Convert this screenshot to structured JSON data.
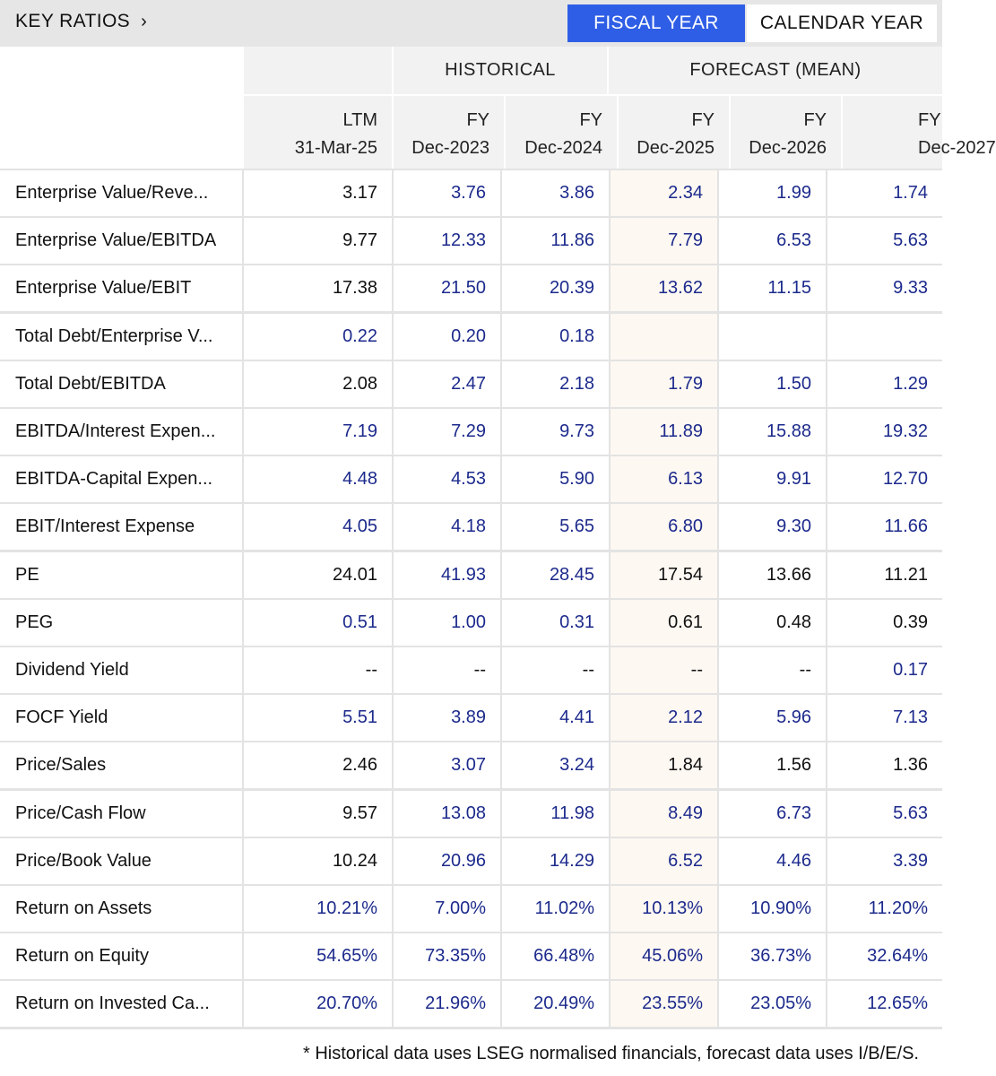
{
  "header": {
    "title": "KEY RATIOS",
    "title_chevron": "›",
    "toggle": {
      "fiscal": "FISCAL YEAR",
      "calendar": "CALENDAR YEAR",
      "active": "fiscal"
    },
    "accent_color": "#2f5ee6"
  },
  "groups": {
    "historical": "HISTORICAL",
    "forecast": "FORECAST (MEAN)"
  },
  "columns": [
    {
      "line1": "LTM",
      "line2": "31-Mar-25"
    },
    {
      "line1": "FY",
      "line2": "Dec-2023"
    },
    {
      "line1": "FY",
      "line2": "Dec-2024"
    },
    {
      "line1": "FY",
      "line2": "Dec-2025"
    },
    {
      "line1": "FY",
      "line2": "Dec-2026"
    },
    {
      "line1": "FY",
      "line2": "Dec-2027"
    }
  ],
  "rows": [
    {
      "label": "Enterprise Value/Reve...",
      "values": [
        "3.17",
        "3.76",
        "3.86",
        "2.34",
        "1.99",
        "1.74"
      ],
      "links": [
        false,
        true,
        true,
        true,
        true,
        true
      ]
    },
    {
      "label": "Enterprise Value/EBITDA",
      "values": [
        "9.77",
        "12.33",
        "11.86",
        "7.79",
        "6.53",
        "5.63"
      ],
      "links": [
        false,
        true,
        true,
        true,
        true,
        true
      ]
    },
    {
      "label": "Enterprise Value/EBIT",
      "values": [
        "17.38",
        "21.50",
        "20.39",
        "13.62",
        "11.15",
        "9.33"
      ],
      "links": [
        false,
        true,
        true,
        true,
        true,
        true
      ]
    },
    {
      "label": "Total Debt/Enterprise V...",
      "values": [
        "0.22",
        "0.20",
        "0.18",
        "",
        "",
        ""
      ],
      "links": [
        true,
        true,
        true,
        false,
        false,
        false
      ]
    },
    {
      "label": "Total Debt/EBITDA",
      "values": [
        "2.08",
        "2.47",
        "2.18",
        "1.79",
        "1.50",
        "1.29"
      ],
      "links": [
        false,
        true,
        true,
        true,
        true,
        true
      ]
    },
    {
      "label": "EBITDA/Interest Expen...",
      "values": [
        "7.19",
        "7.29",
        "9.73",
        "11.89",
        "15.88",
        "19.32"
      ],
      "links": [
        true,
        true,
        true,
        true,
        true,
        true
      ]
    },
    {
      "label": "EBITDA-Capital Expen...",
      "values": [
        "4.48",
        "4.53",
        "5.90",
        "6.13",
        "9.91",
        "12.70"
      ],
      "links": [
        true,
        true,
        true,
        true,
        true,
        true
      ]
    },
    {
      "label": "EBIT/Interest Expense",
      "values": [
        "4.05",
        "4.18",
        "5.65",
        "6.80",
        "9.30",
        "11.66"
      ],
      "links": [
        true,
        true,
        true,
        true,
        true,
        true
      ]
    },
    {
      "label": "PE",
      "values": [
        "24.01",
        "41.93",
        "28.45",
        "17.54",
        "13.66",
        "11.21"
      ],
      "links": [
        false,
        true,
        true,
        false,
        false,
        false
      ]
    },
    {
      "label": "PEG",
      "values": [
        "0.51",
        "1.00",
        "0.31",
        "0.61",
        "0.48",
        "0.39"
      ],
      "links": [
        true,
        true,
        true,
        false,
        false,
        false
      ]
    },
    {
      "label": "Dividend Yield",
      "values": [
        "--",
        "--",
        "--",
        "--",
        "--",
        "0.17"
      ],
      "links": [
        false,
        false,
        false,
        false,
        false,
        true
      ]
    },
    {
      "label": "FOCF Yield",
      "values": [
        "5.51",
        "3.89",
        "4.41",
        "2.12",
        "5.96",
        "7.13"
      ],
      "links": [
        true,
        true,
        true,
        true,
        true,
        true
      ]
    },
    {
      "label": "Price/Sales",
      "values": [
        "2.46",
        "3.07",
        "3.24",
        "1.84",
        "1.56",
        "1.36"
      ],
      "links": [
        false,
        true,
        true,
        false,
        false,
        false
      ]
    },
    {
      "label": "Price/Cash Flow",
      "values": [
        "9.57",
        "13.08",
        "11.98",
        "8.49",
        "6.73",
        "5.63"
      ],
      "links": [
        false,
        true,
        true,
        true,
        true,
        true
      ]
    },
    {
      "label": "Price/Book Value",
      "values": [
        "10.24",
        "20.96",
        "14.29",
        "6.52",
        "4.46",
        "3.39"
      ],
      "links": [
        false,
        true,
        true,
        true,
        true,
        true
      ]
    },
    {
      "label": "Return on Assets",
      "values": [
        "10.21%",
        "7.00%",
        "11.02%",
        "10.13%",
        "10.90%",
        "11.20%"
      ],
      "links": [
        true,
        true,
        true,
        true,
        true,
        true
      ]
    },
    {
      "label": "Return on Equity",
      "values": [
        "54.65%",
        "73.35%",
        "66.48%",
        "45.06%",
        "36.73%",
        "32.64%"
      ],
      "links": [
        true,
        true,
        true,
        true,
        true,
        true
      ]
    },
    {
      "label": "Return on Invested Ca...",
      "values": [
        "20.70%",
        "21.96%",
        "20.49%",
        "23.55%",
        "23.05%",
        "12.65%"
      ],
      "links": [
        true,
        true,
        true,
        true,
        true,
        true
      ]
    }
  ],
  "footnote": "* Historical data uses LSEG normalised financials, forecast data uses I/B/E/S."
}
